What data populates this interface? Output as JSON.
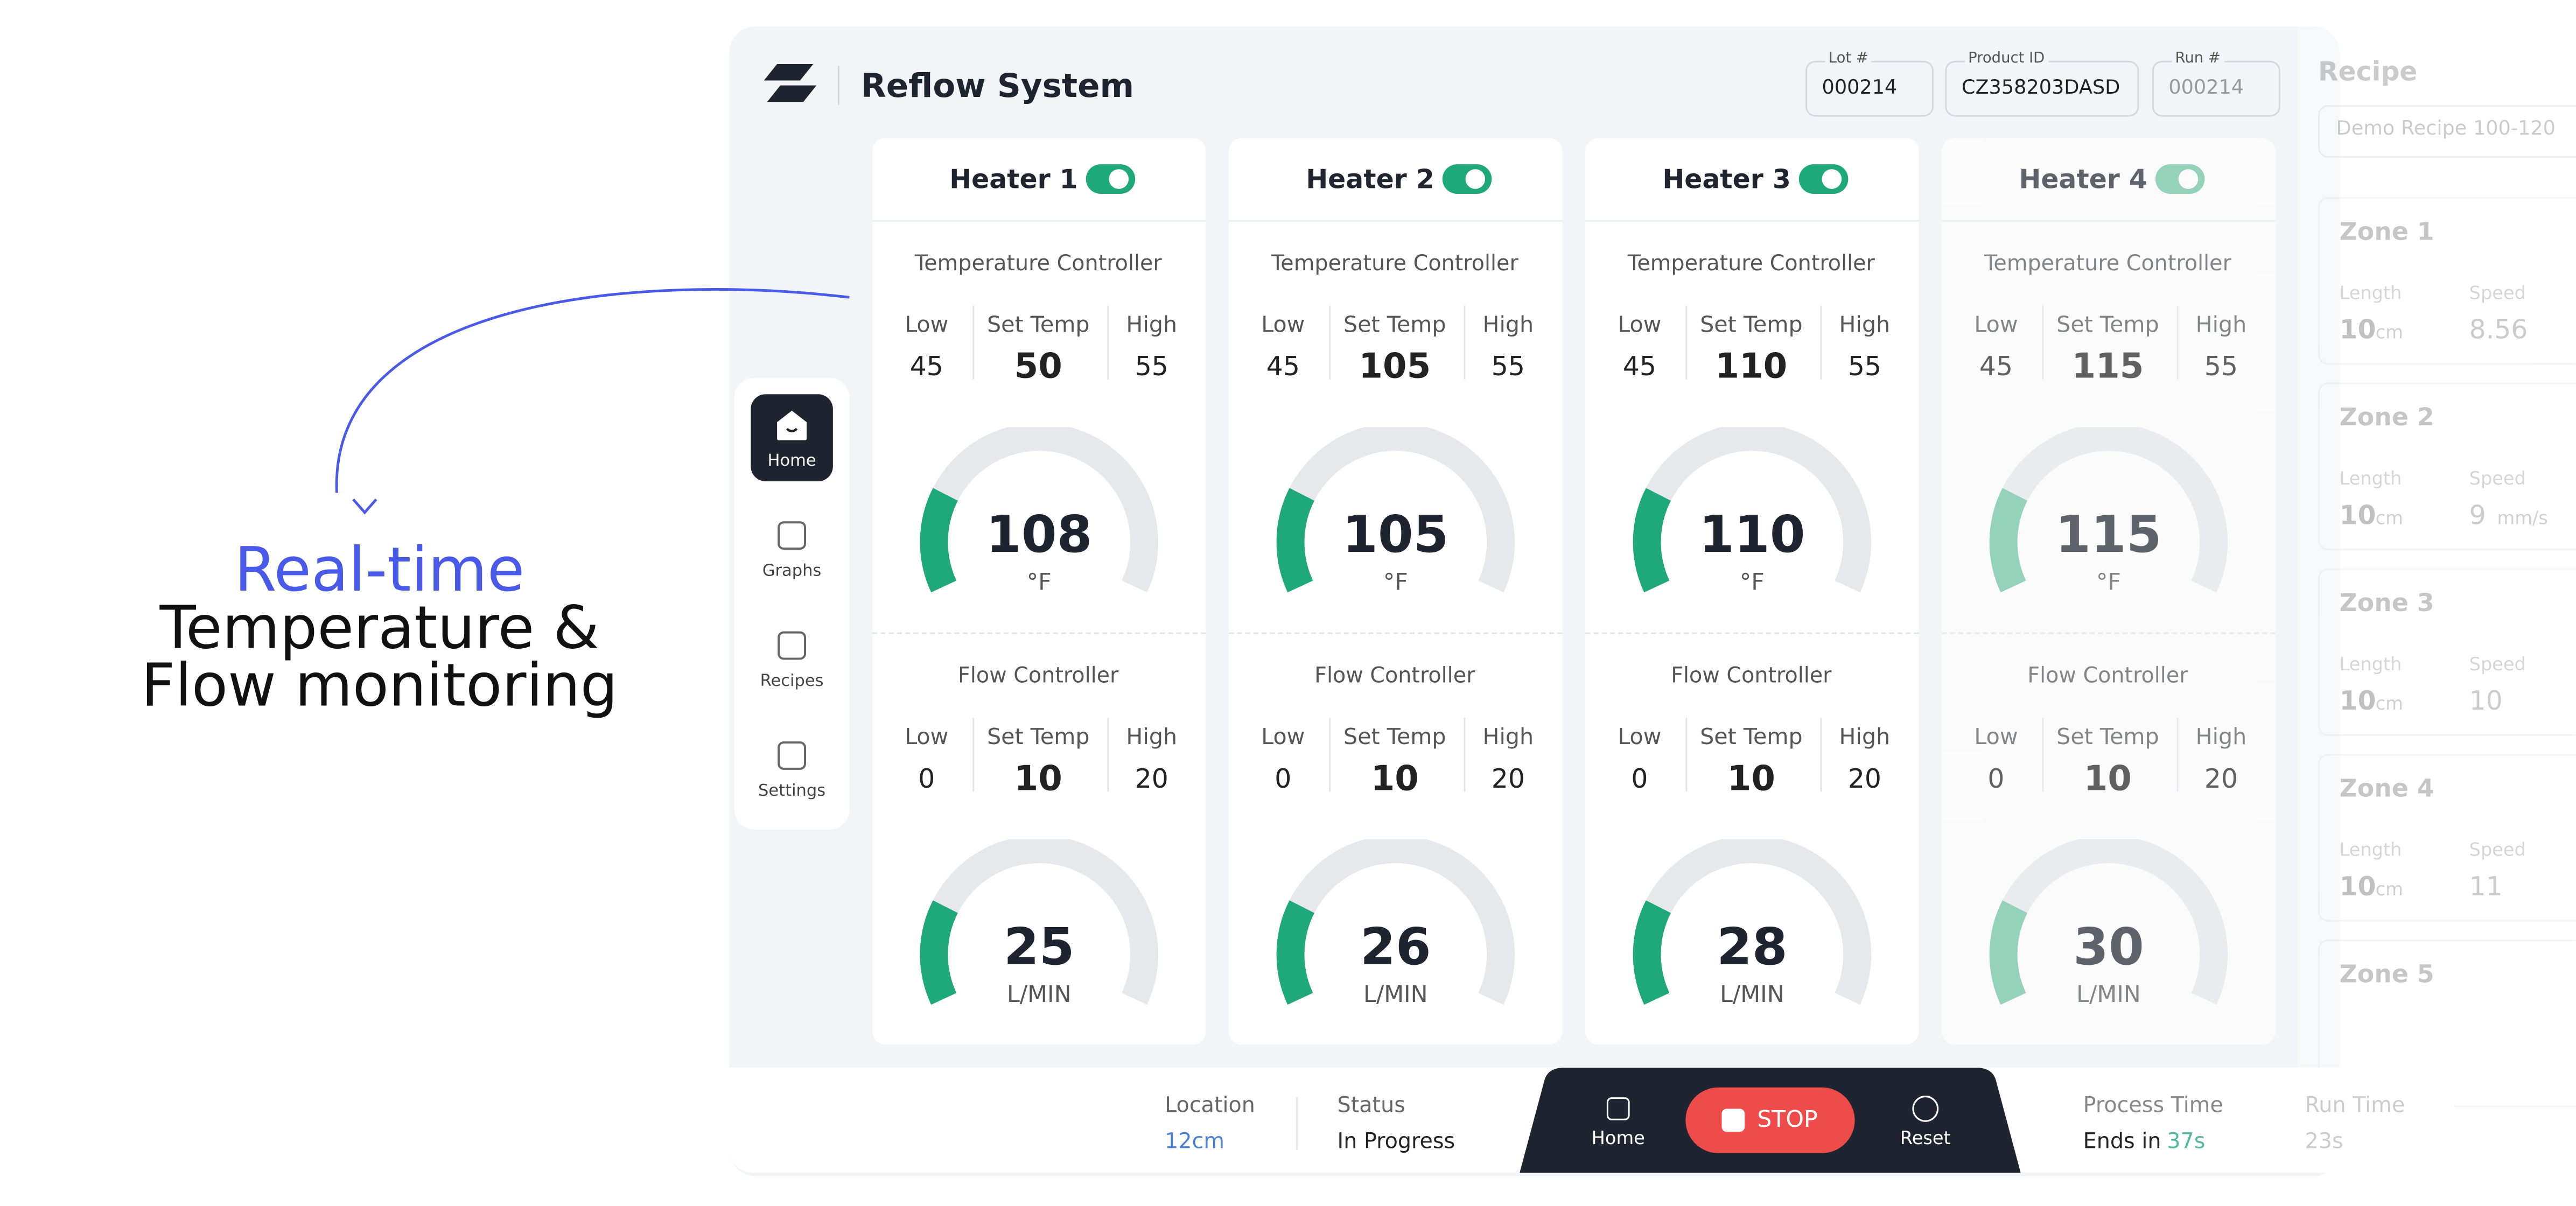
{
  "annotation": {
    "highlight": "Real-time",
    "lines": [
      "Temperature &",
      "Flow monitoring"
    ]
  },
  "header": {
    "title": "Reflow System",
    "fields": [
      {
        "label": "Lot #",
        "value": "000214"
      },
      {
        "label": "Product ID",
        "value": "CZ358203DASD"
      },
      {
        "label": "Run #",
        "value": "000214"
      }
    ]
  },
  "nav": [
    "Home",
    "Graphs",
    "Recipes",
    "Settings"
  ],
  "heaters": [
    {
      "name": "Heater 1",
      "dimmed": false,
      "temperature": {
        "title": "Temperature Controller",
        "low_label": "Low",
        "low": 45,
        "set_label": "Set Temp",
        "set": 50,
        "high_label": "High",
        "high": 55,
        "reading": 108,
        "unit": "°F"
      },
      "flow": {
        "title": "Flow Controller",
        "low_label": "Low",
        "low": 0,
        "set_label": "Set Temp",
        "set": 10,
        "high_label": "High",
        "high": 20,
        "reading": 25,
        "unit": "L/MIN"
      }
    },
    {
      "name": "Heater 2",
      "dimmed": false,
      "temperature": {
        "title": "Temperature Controller",
        "low_label": "Low",
        "low": 45,
        "set_label": "Set Temp",
        "set": 105,
        "high_label": "High",
        "high": 55,
        "reading": 105,
        "unit": "°F"
      },
      "flow": {
        "title": "Flow Controller",
        "low_label": "Low",
        "low": 0,
        "set_label": "Set Temp",
        "set": 10,
        "high_label": "High",
        "high": 20,
        "reading": 26,
        "unit": "L/MIN"
      }
    },
    {
      "name": "Heater 3",
      "dimmed": false,
      "temperature": {
        "title": "Temperature Controller",
        "low_label": "Low",
        "low": 45,
        "set_label": "Set Temp",
        "set": 110,
        "high_label": "High",
        "high": 55,
        "reading": 110,
        "unit": "°F"
      },
      "flow": {
        "title": "Flow Controller",
        "low_label": "Low",
        "low": 0,
        "set_label": "Set Temp",
        "set": 10,
        "high_label": "High",
        "high": 20,
        "reading": 28,
        "unit": "L/MIN"
      }
    },
    {
      "name": "Heater 4",
      "dimmed": true,
      "temperature": {
        "title": "Temperature Controller",
        "low_label": "Low",
        "low": 45,
        "set_label": "Set Temp",
        "set": 115,
        "high_label": "High",
        "high": 55,
        "reading": 115,
        "unit": "°F"
      },
      "flow": {
        "title": "Flow Controller",
        "low_label": "Low",
        "low": 0,
        "set_label": "Set Temp",
        "set": 10,
        "high_label": "High",
        "high": 20,
        "reading": 30,
        "unit": "L/MIN"
      }
    }
  ],
  "recipe": {
    "title": "Recipe",
    "selected": "Demo Recipe 100-120",
    "zones": [
      {
        "name": "Zone 1",
        "length_label": "Length",
        "length": 10,
        "length_unit": "cm",
        "speed_label": "Speed",
        "speed": 8.56
      },
      {
        "name": "Zone 2",
        "length_label": "Length",
        "length": 10,
        "length_unit": "cm",
        "speed_label": "Speed",
        "speed": 9,
        "speed_unit": "mm/s"
      },
      {
        "name": "Zone 3",
        "length_label": "Length",
        "length": 10,
        "length_unit": "cm",
        "speed_label": "Speed",
        "speed": 10
      },
      {
        "name": "Zone 4",
        "length_label": "Length",
        "length": 10,
        "length_unit": "cm",
        "speed_label": "Speed",
        "speed": 11
      },
      {
        "name": "Zone 5"
      }
    ]
  },
  "footer": {
    "location_label": "Location",
    "location": "12cm",
    "status_label": "Status",
    "status": "In Progress",
    "home": "Home",
    "stop": "STOP",
    "reset": "Reset",
    "process_label": "Process Time",
    "process_prefix": "Ends in",
    "process_value": "37s",
    "run_label": "Run Time",
    "run_value": "23s"
  }
}
